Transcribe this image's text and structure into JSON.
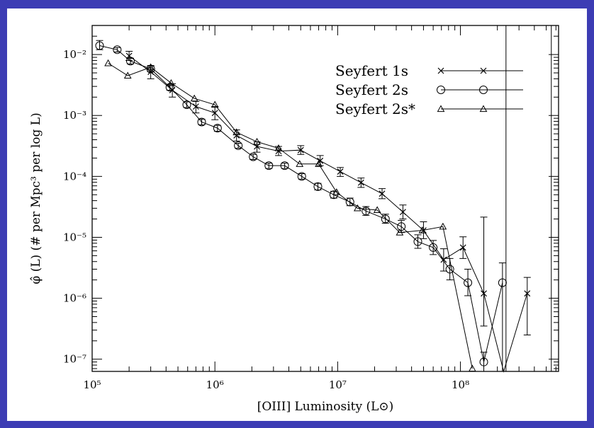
{
  "chart_data": {
    "type": "line",
    "xlabel": "[OIII]   Luminosity (L⊙)",
    "ylabel": "φ̂ (L) (# per Mpc³ per log L)",
    "x_scale": "log",
    "y_scale": "log",
    "xlim": [
      100000,
      630000000
    ],
    "ylim": [
      6.3e-08,
      0.03
    ],
    "x_tick_labels": [
      "10⁵",
      "10⁶",
      "10⁷",
      "10⁸"
    ],
    "x_tick_values": [
      100000,
      1000000,
      10000000,
      100000000
    ],
    "y_tick_labels": [
      "10⁻²",
      "10⁻³",
      "10⁻⁴",
      "10⁻⁵",
      "10⁻⁶",
      "10⁻⁷"
    ],
    "y_tick_values": [
      0.01,
      0.001,
      0.0001,
      1e-05,
      1e-06,
      1e-07
    ],
    "vertical_lines_x": [
      235000000,
      550000000
    ],
    "legend_position": "top-right",
    "series": [
      {
        "name": "Seyfert 1s",
        "marker": "x",
        "points": [
          {
            "x": 200000,
            "y": 0.0095,
            "lo": 0.008,
            "hi": 0.0113
          },
          {
            "x": 300000,
            "y": 0.0052,
            "lo": 0.004,
            "hi": 0.0066
          },
          {
            "x": 450000,
            "y": 0.0026,
            "lo": 0.002,
            "hi": 0.0033
          },
          {
            "x": 700000,
            "y": 0.0014,
            "lo": 0.0011,
            "hi": 0.0017
          },
          {
            "x": 1000000,
            "y": 0.0011,
            "lo": 0.00085,
            "hi": 0.0014
          },
          {
            "x": 1500000,
            "y": 0.00047,
            "lo": 0.00038,
            "hi": 0.00058
          },
          {
            "x": 2200000,
            "y": 0.00031,
            "lo": 0.00025,
            "hi": 0.00037
          },
          {
            "x": 3300000,
            "y": 0.00026,
            "lo": 0.00022,
            "hi": 0.00031
          },
          {
            "x": 5000000,
            "y": 0.00027,
            "lo": 0.00023,
            "hi": 0.00032
          },
          {
            "x": 7200000,
            "y": 0.00018,
            "lo": 0.00015,
            "hi": 0.00022
          },
          {
            "x": 10500000,
            "y": 0.00012,
            "lo": 0.0001,
            "hi": 0.00014
          },
          {
            "x": 15500000,
            "y": 7.9e-05,
            "lo": 6.6e-05,
            "hi": 9.4e-05
          },
          {
            "x": 23000000,
            "y": 5.2e-05,
            "lo": 4.3e-05,
            "hi": 6.3e-05
          },
          {
            "x": 34000000,
            "y": 2.6e-05,
            "lo": 2e-05,
            "hi": 3.4e-05
          },
          {
            "x": 50000000,
            "y": 1.3e-05,
            "lo": 9.5e-06,
            "hi": 1.8e-05
          },
          {
            "x": 73000000,
            "y": 4.3e-06,
            "lo": 2.8e-06,
            "hi": 6.5e-06
          },
          {
            "x": 105000000,
            "y": 6.8e-06,
            "lo": 4.5e-06,
            "hi": 1.02e-05
          },
          {
            "x": 155000000,
            "y": 1.2e-06,
            "lo": 3.5e-07,
            "hi": 2.15e-05
          },
          {
            "x": 225000000,
            "y": 6e-08
          },
          {
            "x": 350000000,
            "y": 1.2e-06,
            "lo": 2.5e-07,
            "hi": 2.2e-06
          }
        ]
      },
      {
        "name": "Seyfert 2s",
        "marker": "o",
        "points": [
          {
            "x": 115000,
            "y": 0.014,
            "lo": 0.012,
            "hi": 0.017
          },
          {
            "x": 160000,
            "y": 0.012,
            "lo": 0.011,
            "hi": 0.013
          },
          {
            "x": 205000,
            "y": 0.0078,
            "lo": 0.007,
            "hi": 0.0087
          },
          {
            "x": 300000,
            "y": 0.0058,
            "lo": 0.0052,
            "hi": 0.0065
          },
          {
            "x": 430000,
            "y": 0.0029,
            "lo": 0.0026,
            "hi": 0.0032
          },
          {
            "x": 590000,
            "y": 0.0015,
            "lo": 0.00135,
            "hi": 0.00167
          },
          {
            "x": 780000,
            "y": 0.00078,
            "lo": 0.0007,
            "hi": 0.00087
          },
          {
            "x": 1050000,
            "y": 0.00062,
            "lo": 0.00055,
            "hi": 0.00069
          },
          {
            "x": 1550000,
            "y": 0.00032,
            "lo": 0.00029,
            "hi": 0.00035
          },
          {
            "x": 2050000,
            "y": 0.00021,
            "lo": 0.00019,
            "hi": 0.00023
          },
          {
            "x": 2750000,
            "y": 0.00015,
            "lo": 0.000135,
            "hi": 0.000165
          },
          {
            "x": 3700000,
            "y": 0.00015,
            "lo": 0.000135,
            "hi": 0.000165
          },
          {
            "x": 5100000,
            "y": 0.0001,
            "lo": 9e-05,
            "hi": 0.000111
          },
          {
            "x": 6900000,
            "y": 6.8e-05,
            "lo": 6e-05,
            "hi": 7.7e-05
          },
          {
            "x": 9300000,
            "y": 5e-05,
            "lo": 4.4e-05,
            "hi": 5.7e-05
          },
          {
            "x": 12600000,
            "y": 3.8e-05,
            "lo": 3.3e-05,
            "hi": 4.4e-05
          },
          {
            "x": 17000000,
            "y": 2.7e-05,
            "lo": 2.3e-05,
            "hi": 3.2e-05
          },
          {
            "x": 24500000,
            "y": 2e-05,
            "lo": 1.7e-05,
            "hi": 2.4e-05
          },
          {
            "x": 33000000,
            "y": 1.5e-05,
            "lo": 1.2e-05,
            "hi": 1.9e-05
          },
          {
            "x": 45000000,
            "y": 8.5e-06,
            "lo": 6.6e-06,
            "hi": 1.1e-05
          },
          {
            "x": 60000000,
            "y": 6.8e-06,
            "lo": 5.2e-06,
            "hi": 8.9e-06
          },
          {
            "x": 82000000,
            "y": 3e-06,
            "lo": 2e-06,
            "hi": 4.5e-06
          },
          {
            "x": 115000000,
            "y": 1.8e-06,
            "lo": 1.1e-06,
            "hi": 3e-06
          },
          {
            "x": 155000000,
            "y": 9e-08,
            "lo": 6e-08,
            "hi": 1.3e-07
          },
          {
            "x": 220000000,
            "y": 1.8e-06,
            "lo": 6e-08,
            "hi": 3.8e-06
          }
        ]
      },
      {
        "name": "Seyfert 2s*",
        "marker": "triangle",
        "points": [
          {
            "x": 135000,
            "y": 0.0072
          },
          {
            "x": 195000,
            "y": 0.0045
          },
          {
            "x": 300000,
            "y": 0.0062
          },
          {
            "x": 440000,
            "y": 0.0034
          },
          {
            "x": 680000,
            "y": 0.0019
          },
          {
            "x": 1000000,
            "y": 0.0015
          },
          {
            "x": 1500000,
            "y": 0.00053
          },
          {
            "x": 2200000,
            "y": 0.00037
          },
          {
            "x": 3300000,
            "y": 0.00029
          },
          {
            "x": 4900000,
            "y": 0.00016
          },
          {
            "x": 7000000,
            "y": 0.00016
          },
          {
            "x": 9800000,
            "y": 5.5e-05
          },
          {
            "x": 14500000,
            "y": 3e-05
          },
          {
            "x": 21000000,
            "y": 2.8e-05
          },
          {
            "x": 32000000,
            "y": 1.2e-05
          },
          {
            "x": 49000000,
            "y": 1.3e-05
          },
          {
            "x": 72000000,
            "y": 1.5e-05
          },
          {
            "x": 125000000,
            "y": 7e-08
          }
        ]
      }
    ]
  }
}
